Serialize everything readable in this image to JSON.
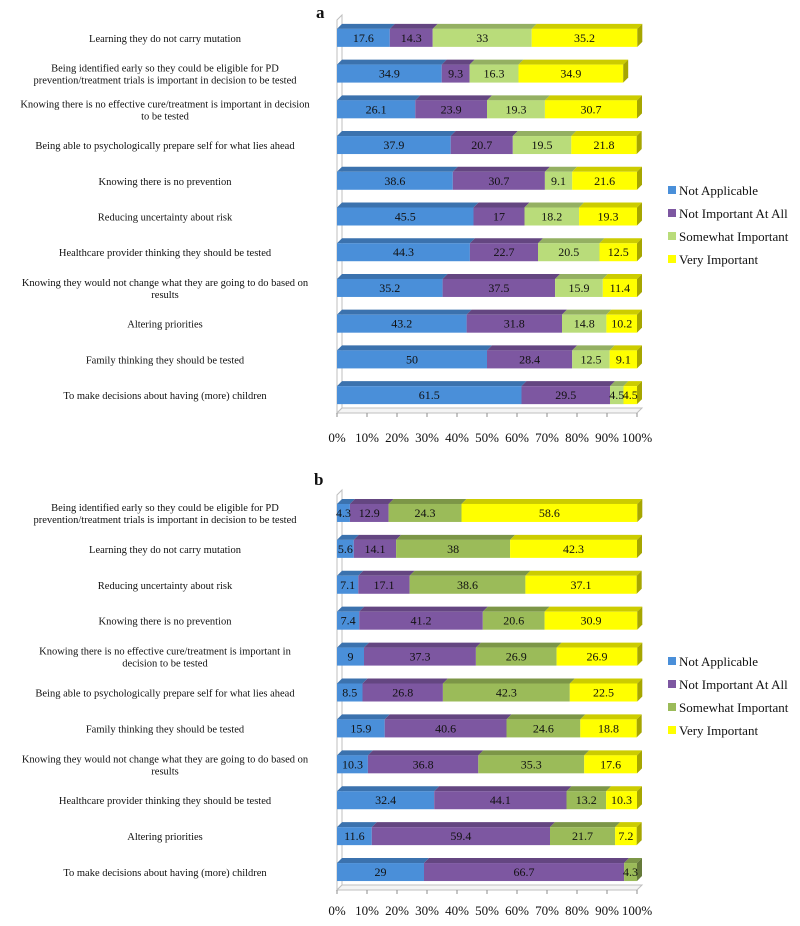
{
  "chart_data": [
    {
      "type": "bar",
      "orientation": "horizontal",
      "stacked": "percent",
      "title": "a",
      "categories": [
        "Learning they do not carry mutation",
        "Being identified early so they could be eligible for PD|prevention/treatment trials is important in decision to be tested",
        "Knowing there is no effective cure/treatment is important in decision|to be tested",
        "Being able to psychologically prepare self for what lies ahead",
        "Knowing there is no prevention",
        "Reducing uncertainty about risk",
        "Healthcare provider thinking they should be tested",
        "Knowing they would not change what they are going to do based on|results",
        "Altering priorities",
        "Family thinking they should be tested",
        "To make decisions about having (more) children"
      ],
      "series": [
        {
          "name": "Not Applicable",
          "values": [
            17.6,
            34.9,
            26.1,
            37.9,
            38.6,
            45.5,
            44.3,
            35.2,
            43.2,
            50,
            61.5
          ]
        },
        {
          "name": "Not Important At All",
          "values": [
            14.3,
            9.3,
            23.9,
            20.7,
            30.7,
            17,
            22.7,
            37.5,
            31.8,
            28.4,
            29.5
          ]
        },
        {
          "name": "Somewhat Important",
          "values": [
            33,
            16.3,
            19.3,
            19.5,
            9.1,
            18.2,
            20.5,
            15.9,
            14.8,
            12.5,
            4.5
          ]
        },
        {
          "name": "Very Important",
          "values": [
            35.2,
            34.9,
            30.7,
            21.8,
            21.6,
            19.3,
            12.5,
            11.4,
            10.2,
            9.1,
            4.5
          ]
        }
      ],
      "xlim": [
        0,
        100
      ],
      "xticks": [
        "0%",
        "10%",
        "20%",
        "30%",
        "40%",
        "50%",
        "60%",
        "70%",
        "80%",
        "90%",
        "100%"
      ],
      "legend": "right",
      "colors": [
        "#4a8fd9",
        "#7d57a1",
        "#b9dc7a",
        "#ffff00"
      ]
    },
    {
      "type": "bar",
      "orientation": "horizontal",
      "stacked": "percent",
      "title": "b",
      "categories": [
        "Being identified early so they could be eligible for PD|prevention/treatment trials is important in decision to be tested",
        "Learning they do not carry mutation",
        "Reducing uncertainty about risk",
        "Knowing there is no prevention",
        "Knowing there is no effective cure/treatment is important in|decision to be tested",
        "Being able to psychologically prepare self for what lies ahead",
        "Family thinking they should be tested",
        "Knowing they would not change what they are  going to do based on|results",
        "Healthcare provider thinking they should be tested",
        "Altering priorities",
        "To make decisions about having (more) children"
      ],
      "series": [
        {
          "name": "Not Applicable",
          "values": [
            4.3,
            5.6,
            7.1,
            7.4,
            9,
            8.5,
            15.9,
            10.3,
            32.4,
            11.6,
            29
          ]
        },
        {
          "name": "Not Important At All",
          "values": [
            12.9,
            14.1,
            17.1,
            41.2,
            37.3,
            26.8,
            40.6,
            36.8,
            44.1,
            59.4,
            66.7
          ]
        },
        {
          "name": "Somewhat Important",
          "values": [
            24.3,
            38,
            38.6,
            20.6,
            26.9,
            42.3,
            24.6,
            35.3,
            13.2,
            21.7,
            4.3
          ]
        },
        {
          "name": "Very Important",
          "values": [
            58.6,
            42.3,
            37.1,
            30.9,
            26.9,
            22.5,
            18.8,
            17.6,
            10.3,
            7.2,
            0
          ]
        }
      ],
      "value_labels": [
        [
          "4.3",
          "12.9",
          "24.3",
          "58.6"
        ],
        [
          "5.6",
          "14.1",
          "38",
          "42.3"
        ],
        [
          "7.1",
          "17.1",
          "38.6",
          "37.1"
        ],
        [
          "7.4",
          "41.2",
          "20.6",
          "30.9"
        ],
        [
          "9",
          "37.3",
          "26.9",
          "26.9"
        ],
        [
          "8.5",
          "26.8",
          "42.3",
          "22.5"
        ],
        [
          "15.9",
          "40.6",
          "24.6",
          "18.8"
        ],
        [
          "10.3",
          "36.8",
          "35.3",
          "17.6"
        ],
        [
          "32.4",
          "44.1",
          "13.2",
          "10.3"
        ],
        [
          "11.6",
          "59.4",
          "21.7",
          "7.2"
        ],
        [
          "29",
          "66.7",
          "4.3",
          ""
        ]
      ],
      "xlim": [
        0,
        100
      ],
      "xticks": [
        "0%",
        "10%",
        "20%",
        "30%",
        "40%",
        "50%",
        "60%",
        "70%",
        "80%",
        "90%",
        "100%"
      ],
      "legend": "right",
      "colors": [
        "#4a8fd9",
        "#7d57a1",
        "#9bbb59",
        "#ffff00"
      ]
    }
  ]
}
